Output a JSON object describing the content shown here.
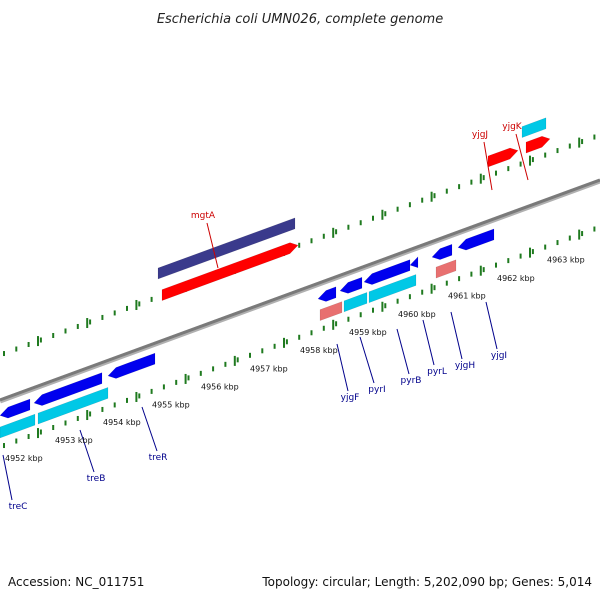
{
  "title": "Escherichia coli UMN026, complete genome",
  "footer": {
    "accession": "Accession: NC_011751",
    "summary": "Topology: circular; Length: 5,202,090 bp; Genes: 5,014"
  },
  "colors": {
    "backbone": "#7a7a7a",
    "ticks": "#1f7a1f",
    "forward_gene_label": "#cc0000",
    "reverse_gene_label": "#00008b",
    "cds_blue": "#0000ee",
    "cds_cyan": "#00c8e6",
    "cds_red": "#ff0000",
    "cds_navy": "#3a3a8c",
    "rna_pink": "#e87070",
    "label_line_forward": "#cc0000",
    "label_line_reverse": "#00008b"
  },
  "scale": {
    "unit": "kbp",
    "tick_labels": [
      "4952 kbp",
      "4953 kbp",
      "4954 kbp",
      "4955 kbp",
      "4956 kbp",
      "4957 kbp",
      "4958 kbp",
      "4959 kbp",
      "4960 kbp",
      "4961 kbp",
      "4962 kbp",
      "4963 kbp"
    ]
  },
  "gene_labels": {
    "forward": [
      "mgtA",
      "yjgJ",
      "yjgK"
    ],
    "reverse": [
      "treC",
      "treB",
      "treR",
      "yjgF",
      "pyrI",
      "pyrB",
      "pyrL",
      "yjgH",
      "yjgI"
    ]
  }
}
